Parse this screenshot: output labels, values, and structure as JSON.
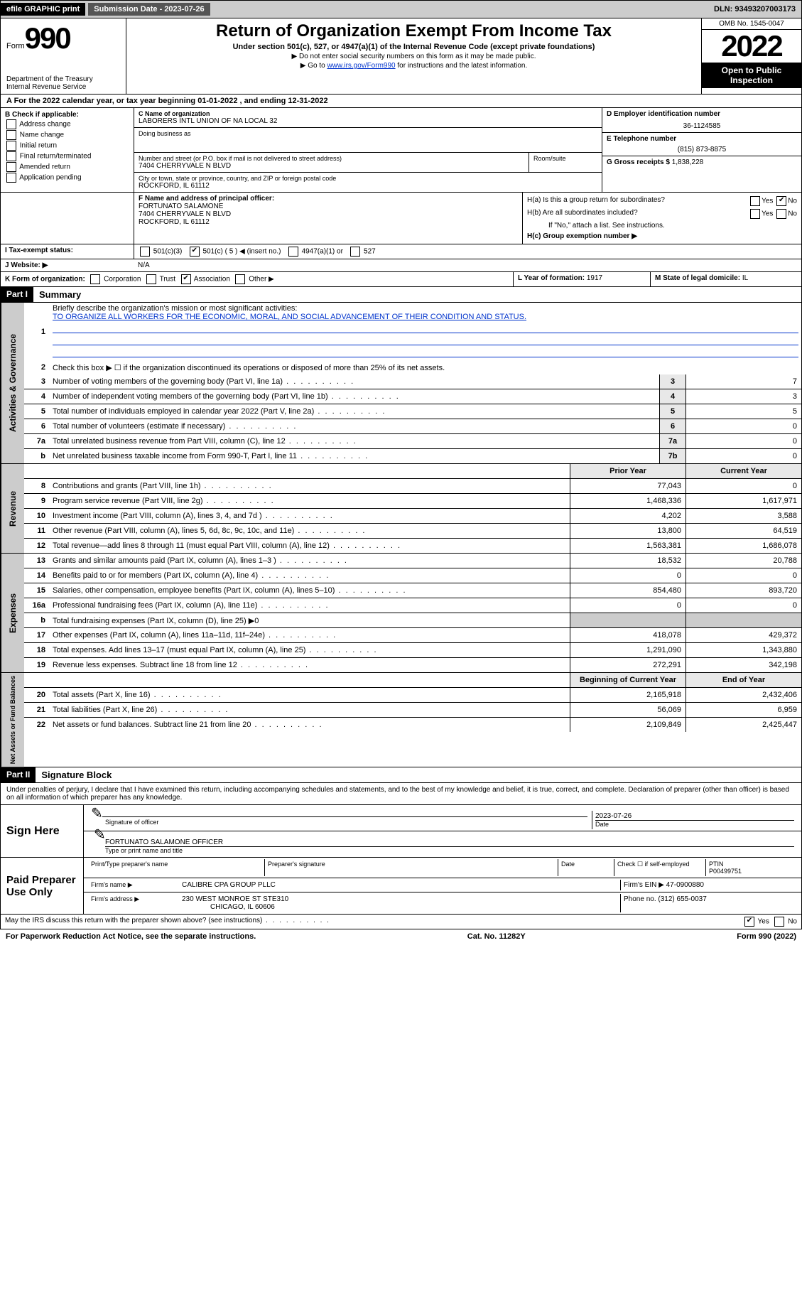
{
  "topbar": {
    "efile": "efile GRAPHIC print",
    "submission": "Submission Date - 2023-07-26",
    "dln": "DLN: 93493207003173"
  },
  "header": {
    "form_label": "Form",
    "form_num": "990",
    "dept": "Department of the Treasury",
    "irs": "Internal Revenue Service",
    "title": "Return of Organization Exempt From Income Tax",
    "sub": "Under section 501(c), 527, or 4947(a)(1) of the Internal Revenue Code (except private foundations)",
    "note1": "▶ Do not enter social security numbers on this form as it may be made public.",
    "note2_pre": "▶ Go to ",
    "note2_link": "www.irs.gov/Form990",
    "note2_post": " for instructions and the latest information.",
    "omb": "OMB No. 1545-0047",
    "year": "2022",
    "open": "Open to Public Inspection"
  },
  "row_a": "A For the 2022 calendar year, or tax year beginning 01-01-2022    , and ending 12-31-2022",
  "col_b": {
    "title": "B Check if applicable:",
    "items": [
      "Address change",
      "Name change",
      "Initial return",
      "Final return/terminated",
      "Amended return",
      "Application pending"
    ]
  },
  "col_c": {
    "c_label": "C Name of organization",
    "c_name": "LABORERS INTL UNION OF NA LOCAL 32",
    "dba": "Doing business as",
    "street_label": "Number and street (or P.O. box if mail is not delivered to street address)",
    "room_label": "Room/suite",
    "street": "7404 CHERRYVALE N BLVD",
    "city_label": "City or town, state or province, country, and ZIP or foreign postal code",
    "city": "ROCKFORD, IL  61112"
  },
  "col_d": {
    "d_label": "D Employer identification number",
    "ein": "36-1124585",
    "e_label": "E Telephone number",
    "phone": "(815) 873-8875",
    "g_label": "G Gross receipts $",
    "gross": "1,838,228"
  },
  "row_f": {
    "f_label": "F Name and address of principal officer:",
    "name": "FORTUNATO SALAMONE",
    "addr1": "7404 CHERRYVALE N BLVD",
    "addr2": "ROCKFORD, IL  61112",
    "ha": "H(a)  Is this a group return for subordinates?",
    "hb": "H(b)  Are all subordinates included?",
    "hb_note": "If \"No,\" attach a list. See instructions.",
    "hc": "H(c)  Group exemption number ▶",
    "yes": "Yes",
    "no": "No"
  },
  "row_i": {
    "label": "I    Tax-exempt status:",
    "opt1": "501(c)(3)",
    "opt2": "501(c) ( 5 ) ◀ (insert no.)",
    "opt3": "4947(a)(1) or",
    "opt4": "527"
  },
  "row_j": {
    "label": "J    Website: ▶",
    "val": "N/A"
  },
  "row_k": {
    "label": "K Form of organization:",
    "corp": "Corporation",
    "trust": "Trust",
    "assoc": "Association",
    "other": "Other ▶",
    "l_label": "L Year of formation:",
    "l_val": "1917",
    "m_label": "M State of legal domicile:",
    "m_val": "IL"
  },
  "part1": {
    "header": "Part I",
    "title": "Summary",
    "q1": "Briefly describe the organization's mission or most significant activities:",
    "mission": "TO ORGANIZE ALL WORKERS FOR THE ECONOMIC, MORAL, AND SOCIAL ADVANCEMENT OF THEIR CONDITION AND STATUS.",
    "q2": "Check this box ▶ ☐  if the organization discontinued its operations or disposed of more than 25% of its net assets.",
    "tabs": {
      "gov": "Activities & Governance",
      "rev": "Revenue",
      "exp": "Expenses",
      "net": "Net Assets or Fund Balances"
    },
    "lines_gov": [
      {
        "n": "3",
        "d": "Number of voting members of the governing body (Part VI, line 1a)",
        "box": "3",
        "v": "7"
      },
      {
        "n": "4",
        "d": "Number of independent voting members of the governing body (Part VI, line 1b)",
        "box": "4",
        "v": "3"
      },
      {
        "n": "5",
        "d": "Total number of individuals employed in calendar year 2022 (Part V, line 2a)",
        "box": "5",
        "v": "5"
      },
      {
        "n": "6",
        "d": "Total number of volunteers (estimate if necessary)",
        "box": "6",
        "v": "0"
      },
      {
        "n": "7a",
        "d": "Total unrelated business revenue from Part VIII, column (C), line 12",
        "box": "7a",
        "v": "0"
      },
      {
        "n": "b",
        "d": "Net unrelated business taxable income from Form 990-T, Part I, line 11",
        "box": "7b",
        "v": "0"
      }
    ],
    "col_prior": "Prior Year",
    "col_current": "Current Year",
    "lines_rev": [
      {
        "n": "8",
        "d": "Contributions and grants (Part VIII, line 1h)",
        "p": "77,043",
        "c": "0"
      },
      {
        "n": "9",
        "d": "Program service revenue (Part VIII, line 2g)",
        "p": "1,468,336",
        "c": "1,617,971"
      },
      {
        "n": "10",
        "d": "Investment income (Part VIII, column (A), lines 3, 4, and 7d )",
        "p": "4,202",
        "c": "3,588"
      },
      {
        "n": "11",
        "d": "Other revenue (Part VIII, column (A), lines 5, 6d, 8c, 9c, 10c, and 11e)",
        "p": "13,800",
        "c": "64,519"
      },
      {
        "n": "12",
        "d": "Total revenue—add lines 8 through 11 (must equal Part VIII, column (A), line 12)",
        "p": "1,563,381",
        "c": "1,686,078"
      }
    ],
    "lines_exp": [
      {
        "n": "13",
        "d": "Grants and similar amounts paid (Part IX, column (A), lines 1–3 )",
        "p": "18,532",
        "c": "20,788"
      },
      {
        "n": "14",
        "d": "Benefits paid to or for members (Part IX, column (A), line 4)",
        "p": "0",
        "c": "0"
      },
      {
        "n": "15",
        "d": "Salaries, other compensation, employee benefits (Part IX, column (A), lines 5–10)",
        "p": "854,480",
        "c": "893,720"
      },
      {
        "n": "16a",
        "d": "Professional fundraising fees (Part IX, column (A), line 11e)",
        "p": "0",
        "c": "0"
      },
      {
        "n": "b",
        "d": "Total fundraising expenses (Part IX, column (D), line 25) ▶0",
        "p": "",
        "c": "",
        "noval": true
      },
      {
        "n": "17",
        "d": "Other expenses (Part IX, column (A), lines 11a–11d, 11f–24e)",
        "p": "418,078",
        "c": "429,372"
      },
      {
        "n": "18",
        "d": "Total expenses. Add lines 13–17 (must equal Part IX, column (A), line 25)",
        "p": "1,291,090",
        "c": "1,343,880"
      },
      {
        "n": "19",
        "d": "Revenue less expenses. Subtract line 18 from line 12",
        "p": "272,291",
        "c": "342,198"
      }
    ],
    "col_begin": "Beginning of Current Year",
    "col_end": "End of Year",
    "lines_net": [
      {
        "n": "20",
        "d": "Total assets (Part X, line 16)",
        "p": "2,165,918",
        "c": "2,432,406"
      },
      {
        "n": "21",
        "d": "Total liabilities (Part X, line 26)",
        "p": "56,069",
        "c": "6,959"
      },
      {
        "n": "22",
        "d": "Net assets or fund balances. Subtract line 21 from line 20",
        "p": "2,109,849",
        "c": "2,425,447"
      }
    ]
  },
  "part2": {
    "header": "Part II",
    "title": "Signature Block",
    "decl": "Under penalties of perjury, I declare that I have examined this return, including accompanying schedules and statements, and to the best of my knowledge and belief, it is true, correct, and complete. Declaration of preparer (other than officer) is based on all information of which preparer has any knowledge.",
    "sign_here": "Sign Here",
    "sig_officer": "Signature of officer",
    "date": "Date",
    "date_val": "2023-07-26",
    "name_title": "FORTUNATO SALAMONE  OFFICER",
    "name_title_label": "Type or print name and title",
    "paid": "Paid Preparer Use Only",
    "prep_name_label": "Print/Type preparer's name",
    "prep_sig_label": "Preparer's signature",
    "check_self": "Check ☐ if self-employed",
    "ptin_label": "PTIN",
    "ptin": "P00499751",
    "firm_name_label": "Firm's name    ▶",
    "firm_name": "CALIBRE CPA GROUP PLLC",
    "firm_ein_label": "Firm's EIN ▶",
    "firm_ein": "47-0900880",
    "firm_addr_label": "Firm's address ▶",
    "firm_addr": "230 WEST MONROE ST STE310",
    "firm_city": "CHICAGO, IL  60606",
    "phone_label": "Phone no.",
    "phone": "(312) 655-0037",
    "discuss": "May the IRS discuss this return with the preparer shown above? (see instructions)"
  },
  "footer": {
    "left": "For Paperwork Reduction Act Notice, see the separate instructions.",
    "mid": "Cat. No. 11282Y",
    "right": "Form 990 (2022)"
  }
}
